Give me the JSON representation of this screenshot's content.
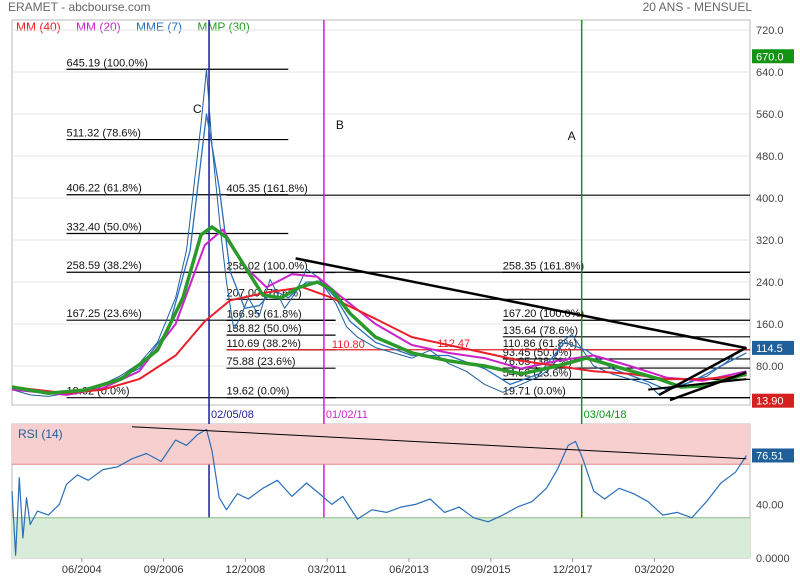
{
  "header": {
    "title": "ERAMET - abcbourse.com",
    "period": "20 ANS - MENSUEL"
  },
  "legend": [
    {
      "label": "MM (40)",
      "color": "#e8202a"
    },
    {
      "label": "MM (20)",
      "color": "#cc22cc"
    },
    {
      "label": "MME (7)",
      "color": "#2a6fb8"
    },
    {
      "label": "MMP (30)",
      "color": "#2a9a2a"
    }
  ],
  "colors": {
    "price": "#1f5f9a",
    "mm40": "#e8202a",
    "mm20": "#cc22cc",
    "mme7": "#2a6fb8",
    "mmp30": "#2a9a2a",
    "vline_a": "#129412",
    "vline_b": "#cc22cc",
    "vline_c": "#1a1aa0",
    "rsi_line": "#2a6fb8",
    "rsi_overbought": "#f7cfcf",
    "rsi_oversold": "#d9ebd9",
    "badge_high": "#129412",
    "badge_last": "#1f5f9a",
    "badge_low": "#d42020"
  },
  "chart_data": [
    {
      "type": "line",
      "title": "ERAMET",
      "ylim": [
        0,
        720
      ],
      "yticks": [
        "720.0",
        "640.0",
        "560.0",
        "480.0",
        "400.0",
        "320.0",
        "240.0",
        "160.0",
        "80.00"
      ],
      "ytick_values": [
        720,
        640,
        560,
        480,
        400,
        320,
        240,
        160,
        80
      ],
      "xlim": [
        2002.5,
        2022.8
      ],
      "xticks": [
        "06/2004",
        "09/2006",
        "12/2008",
        "03/2011",
        "06/2013",
        "09/2015",
        "12/2017",
        "03/2020"
      ],
      "xtick_values": [
        2004.42,
        2006.67,
        2008.92,
        2011.17,
        2013.42,
        2015.67,
        2017.92,
        2020.17
      ],
      "grid": "horizontal",
      "price_series": {
        "name": "ERAMET",
        "x": [
          2002.5,
          2003.0,
          2003.5,
          2004.0,
          2004.5,
          2005.0,
          2005.5,
          2006.0,
          2006.5,
          2007.0,
          2007.3,
          2007.5,
          2007.7,
          2007.85,
          2008.0,
          2008.25,
          2008.4,
          2008.6,
          2008.8,
          2009.0,
          2009.3,
          2009.6,
          2010.0,
          2010.3,
          2010.6,
          2010.9,
          2011.1,
          2011.4,
          2011.7,
          2012.0,
          2012.5,
          2013.0,
          2013.5,
          2014.0,
          2014.5,
          2015.0,
          2015.5,
          2016.0,
          2016.5,
          2017.0,
          2017.3,
          2017.6,
          2017.9,
          2018.2,
          2018.5,
          2019.0,
          2019.5,
          2020.0,
          2020.3,
          2020.6,
          2021.0,
          2021.3,
          2021.6,
          2021.9,
          2022.2,
          2022.5,
          2022.7
        ],
        "values": [
          35,
          25,
          22,
          28,
          35,
          45,
          62,
          85,
          125,
          210,
          300,
          420,
          540,
          645,
          500,
          330,
          240,
          150,
          175,
          210,
          175,
          245,
          190,
          220,
          265,
          250,
          230,
          200,
          155,
          135,
          115,
          105,
          95,
          110,
          85,
          70,
          45,
          30,
          45,
          60,
          75,
          125,
          140,
          110,
          80,
          65,
          55,
          45,
          25,
          35,
          45,
          55,
          60,
          75,
          90,
          110,
          114.5
        ]
      },
      "series": [
        {
          "name": "MM (40)",
          "x": [
            2002.5,
            2004,
            2005,
            2006,
            2007,
            2007.8,
            2008.5,
            2009.5,
            2010.5,
            2011.3,
            2012.5,
            2013.5,
            2014.5,
            2015.5,
            2016.5,
            2017.5,
            2018.5,
            2019.5,
            2020.5,
            2021.5,
            2022.7
          ],
          "values": [
            40,
            28,
            35,
            55,
            100,
            165,
            205,
            220,
            230,
            210,
            170,
            135,
            120,
            105,
            90,
            80,
            70,
            65,
            55,
            55,
            62
          ]
        },
        {
          "name": "MM (20)",
          "x": [
            2002.5,
            2004,
            2005,
            2006,
            2007,
            2007.8,
            2008.3,
            2008.9,
            2009.5,
            2010.2,
            2010.9,
            2011.5,
            2012.5,
            2013.5,
            2014.5,
            2015.5,
            2016.5,
            2017.5,
            2018.5,
            2019.5,
            2020.5,
            2021.5,
            2022.7
          ],
          "values": [
            35,
            25,
            38,
            70,
            160,
            310,
            340,
            270,
            230,
            255,
            250,
            215,
            160,
            120,
            105,
            95,
            75,
            90,
            100,
            80,
            58,
            52,
            70
          ]
        },
        {
          "name": "MME (7)",
          "x": [
            2002.5,
            2004,
            2005,
            2006,
            2006.8,
            2007.4,
            2007.85,
            2008.2,
            2008.5,
            2008.9,
            2009.3,
            2009.7,
            2010.1,
            2010.6,
            2011.0,
            2011.4,
            2011.8,
            2012.5,
            2013.5,
            2014.5,
            2015.5,
            2016.2,
            2017.0,
            2017.7,
            2018.3,
            2019.0,
            2020.0,
            2020.5,
            2021.2,
            2022.0,
            2022.7
          ],
          "values": [
            35,
            28,
            42,
            75,
            150,
            300,
            560,
            420,
            260,
            190,
            195,
            225,
            210,
            240,
            240,
            210,
            165,
            125,
            100,
            100,
            75,
            45,
            65,
            125,
            110,
            75,
            50,
            35,
            50,
            80,
            105
          ]
        },
        {
          "name": "MMP (30)",
          "x": [
            2002.5,
            2003.5,
            2004.5,
            2005.5,
            2006.5,
            2007.2,
            2007.7,
            2008.0,
            2008.4,
            2008.9,
            2009.4,
            2009.9,
            2010.4,
            2010.9,
            2011.3,
            2011.8,
            2012.5,
            2013.5,
            2014.5,
            2015.5,
            2016.5,
            2017.5,
            2018.3,
            2019.3,
            2020.3,
            2020.9,
            2021.5,
            2022.2,
            2022.7
          ],
          "values": [
            40,
            28,
            34,
            55,
            110,
            210,
            330,
            345,
            325,
            270,
            215,
            210,
            230,
            240,
            225,
            180,
            135,
            105,
            90,
            80,
            65,
            80,
            95,
            75,
            55,
            40,
            42,
            55,
            65
          ]
        }
      ],
      "vertical_markers": [
        {
          "x": 2007.92,
          "label": "02/05/08",
          "letter": "C"
        },
        {
          "x": 2011.08,
          "label": "01/02/11",
          "letter": "B"
        },
        {
          "x": 2018.17,
          "label": "03/04/18",
          "letter": "A"
        }
      ],
      "fib_levels": [
        {
          "value": 645.19,
          "label": "645.19  (100.0%)",
          "x_start": 2004.0,
          "x_end": 2010.1,
          "label_x": 2004.0
        },
        {
          "value": 511.32,
          "label": "511.32  (78.6%)",
          "x_start": 2004.0,
          "x_end": 2010.1,
          "label_x": 2004.0
        },
        {
          "value": 406.22,
          "label": "406.22  (61.8%)",
          "x_start": 2004.0,
          "x_end": 2010.1,
          "label_x": 2004.0
        },
        {
          "value": 405.35,
          "label": "405.35  (161.8%)",
          "x_start": 2008.4,
          "x_end": 2022.8,
          "label_x": 2008.4
        },
        {
          "value": 332.4,
          "label": "332.40  (50.0%)",
          "x_start": 2004.0,
          "x_end": 2010.1,
          "label_x": 2004.0
        },
        {
          "value": 258.59,
          "label": "258.59  (38.2%)",
          "x_start": 2004.0,
          "x_end": 2022.8,
          "label_x": 2004.0
        },
        {
          "value": 258.02,
          "label": "258.02  (100.0%)",
          "x_start": 2008.4,
          "x_end": 2011.4,
          "label_x": 2008.4
        },
        {
          "value": 258.35,
          "label": "258.35  (161.8%)",
          "x_start": 2016.0,
          "x_end": 2022.8,
          "label_x": 2016.0
        },
        {
          "value": 207.0,
          "label": "207.00  (78.6%)",
          "x_start": 2008.4,
          "x_end": 2022.8,
          "label_x": 2008.4
        },
        {
          "value": 167.25,
          "label": "167.25  (23.6%)",
          "x_start": 2004.0,
          "x_end": 2011.4,
          "label_x": 2004.0
        },
        {
          "value": 166.95,
          "label": "166.95  (61.8%)",
          "x_start": 2008.4,
          "x_end": 2011.4,
          "label_x": 2008.4
        },
        {
          "value": 167.2,
          "label": "167.20  (100.0%)",
          "x_start": 2016.0,
          "x_end": 2022.8,
          "label_x": 2016.0
        },
        {
          "value": 138.82,
          "label": "138.82  (50.0%)",
          "x_start": 2008.4,
          "x_end": 2011.4,
          "label_x": 2008.4
        },
        {
          "value": 135.64,
          "label": "135.64  (78.6%)",
          "x_start": 2016.0,
          "x_end": 2022.8,
          "label_x": 2016.0
        },
        {
          "value": 110.69,
          "label": "110.69  (38.2%)",
          "x_start": 2008.4,
          "x_end": 2011.4,
          "label_x": 2008.4
        },
        {
          "value": 110.86,
          "label": "110.86  (61.8%)",
          "x_start": 2016.0,
          "x_end": 2022.8,
          "label_x": 2016.0
        },
        {
          "value": 93.45,
          "label": "93.45  (50.0%)",
          "x_start": 2016.0,
          "x_end": 2022.8,
          "label_x": 2016.0
        },
        {
          "value": 75.88,
          "label": "75.88  (23.6%)",
          "x_start": 2008.4,
          "x_end": 2011.4,
          "label_x": 2008.4
        },
        {
          "value": 76.05,
          "label": "76.05  (38.2%)",
          "x_start": 2016.0,
          "x_end": 2022.8,
          "label_x": 2016.0
        },
        {
          "value": 54.52,
          "label": "54.52  (23.6%)",
          "x_start": 2016.0,
          "x_end": 2022.8,
          "label_x": 2016.0
        },
        {
          "value": 19.62,
          "label": "19.62  (0.0%)",
          "x_start": 2004.0,
          "x_end": 2022.8,
          "label_x": 2004.0
        },
        {
          "value": 19.62,
          "label": "19.62  (0.0%)",
          "x_start": 2008.4,
          "x_end": 2011.4,
          "label_x": 2008.4
        },
        {
          "value": 19.71,
          "label": "19.71  (0.0%)",
          "x_start": 2016.0,
          "x_end": 2022.8,
          "label_x": 2016.0
        }
      ],
      "red_levels": [
        {
          "value": 110.8,
          "label": "110.80",
          "label_x": 2011.3
        },
        {
          "value": 112.47,
          "label": "112.47",
          "label_x": 2014.2
        }
      ],
      "trendline": {
        "x": [
          2010.3,
          2022.7
        ],
        "values": [
          285,
          114
        ]
      },
      "channel": {
        "upper": {
          "x": [
            2020.3,
            2022.7
          ],
          "values": [
            25,
            115
          ]
        },
        "lower": {
          "x": [
            2020.6,
            2022.7
          ],
          "values": [
            15,
            68
          ]
        },
        "mid": {
          "x": [
            2020.0,
            2022.7
          ],
          "values": [
            35,
            55
          ]
        }
      },
      "badges": [
        {
          "label": "670.0",
          "value": 670.0,
          "color_key": "badge_high"
        },
        {
          "label": "114.5",
          "value": 114.5,
          "color_key": "badge_last"
        },
        {
          "label": "13.90",
          "value": 13.9,
          "color_key": "badge_low"
        }
      ]
    },
    {
      "type": "line",
      "title": "RSI (14)",
      "ylim": [
        0,
        100
      ],
      "yticks": [
        "40.00",
        "0.0000"
      ],
      "ytick_values": [
        40,
        0
      ],
      "zones": {
        "overbought": 70,
        "oversold": 30
      },
      "series": [
        {
          "name": "RSI (14)",
          "x": [
            2002.5,
            2002.6,
            2002.7,
            2002.8,
            2002.9,
            2003.0,
            2003.2,
            2003.5,
            2003.8,
            2004.0,
            2004.3,
            2004.6,
            2005.0,
            2005.4,
            2005.8,
            2006.2,
            2006.6,
            2007.0,
            2007.3,
            2007.6,
            2007.85,
            2008.0,
            2008.2,
            2008.4,
            2008.7,
            2009.0,
            2009.4,
            2009.8,
            2010.2,
            2010.6,
            2011.0,
            2011.3,
            2011.6,
            2012.0,
            2012.4,
            2012.8,
            2013.2,
            2013.6,
            2014.0,
            2014.4,
            2014.8,
            2015.2,
            2015.6,
            2016.0,
            2016.4,
            2016.8,
            2017.2,
            2017.5,
            2017.8,
            2018.0,
            2018.2,
            2018.5,
            2018.8,
            2019.2,
            2019.6,
            2020.0,
            2020.4,
            2020.8,
            2021.2,
            2021.6,
            2022.0,
            2022.4,
            2022.7
          ],
          "values": [
            50,
            2,
            60,
            15,
            45,
            25,
            35,
            32,
            40,
            55,
            62,
            58,
            66,
            68,
            74,
            78,
            72,
            88,
            84,
            92,
            96,
            80,
            45,
            36,
            48,
            44,
            52,
            58,
            46,
            56,
            47,
            40,
            46,
            29,
            36,
            34,
            38,
            40,
            44,
            34,
            38,
            30,
            27,
            32,
            38,
            42,
            52,
            66,
            84,
            87,
            74,
            50,
            44,
            52,
            48,
            42,
            32,
            34,
            30,
            42,
            56,
            64,
            76.51
          ]
        }
      ],
      "trendline": {
        "x": [
          2005.8,
          2022.7
        ],
        "values": [
          98,
          74
        ]
      },
      "badges": [
        {
          "label": "76.51",
          "value": 76.51,
          "color_key": "badge_last"
        }
      ]
    }
  ]
}
